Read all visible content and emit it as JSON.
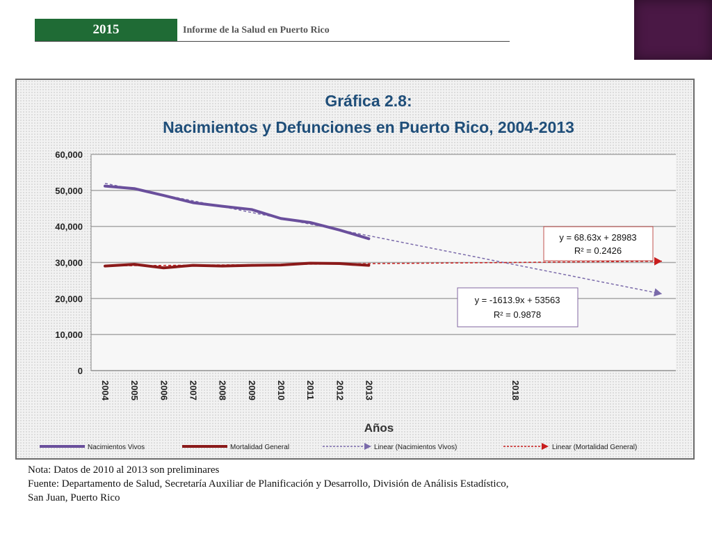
{
  "header": {
    "year": "2015",
    "report_title": "Informe de la Salud en Puerto Rico"
  },
  "colors": {
    "header_green": "#1f6b35",
    "corner_purple": "#4a1845",
    "title_blue": "#1f4e79"
  },
  "chart_data": {
    "type": "line",
    "title_line1": "Gráfica 2.8:",
    "title_line2": "Nacimientos y Defunciones en Puerto Rico, 2004-2013",
    "xlabel": "Años",
    "ylabel": "",
    "x_tick_labels": [
      "2004",
      "2005",
      "2006",
      "2007",
      "2008",
      "2009",
      "2010",
      "2011",
      "2012",
      "2013",
      "2018"
    ],
    "y_tick_labels": [
      "0",
      "10,000",
      "20,000",
      "30,000",
      "40,000",
      "50,000",
      "60,000"
    ],
    "ylim": [
      0,
      60000
    ],
    "xlim": [
      1,
      20
    ],
    "grid": true,
    "legend_position": "bottom",
    "series": [
      {
        "name": "Nacimientos Vivos",
        "color": "#6a4f9c",
        "x": [
          1,
          2,
          3,
          4,
          5,
          6,
          7,
          8,
          9,
          10
        ],
        "values": [
          51200,
          50500,
          48600,
          46600,
          45600,
          44700,
          42200,
          41100,
          39000,
          36600
        ]
      },
      {
        "name": "Mortalidad General",
        "color": "#8b1a1a",
        "x": [
          1,
          2,
          3,
          4,
          5,
          6,
          7,
          8,
          9,
          10
        ],
        "values": [
          29000,
          29500,
          28500,
          29200,
          29000,
          29200,
          29300,
          29800,
          29700,
          29200
        ]
      }
    ],
    "trendlines": [
      {
        "name": "Linear (Nacimientos Vivos)",
        "color": "#7a6aaa",
        "x": [
          1,
          20
        ],
        "values": [
          51949,
          21285
        ],
        "equation": "y = -1613.9x + 53563",
        "r2": "R² = 0.9878"
      },
      {
        "name": "Linear (Mortalidad General)",
        "color": "#c81e1e",
        "x": [
          1,
          20
        ],
        "values": [
          29052,
          30356
        ],
        "equation": "y = 68.63x + 28983",
        "r2": "R² = 0.2426"
      }
    ]
  },
  "notes": {
    "nota": "Nota: Datos de 2010 al 2013 son preliminares",
    "fuente_line1": "Fuente: Departamento de Salud, Secretaría Auxiliar de Planificación y Desarrollo, División de Análisis Estadístico,",
    "fuente_line2": "San Juan, Puerto Rico"
  }
}
